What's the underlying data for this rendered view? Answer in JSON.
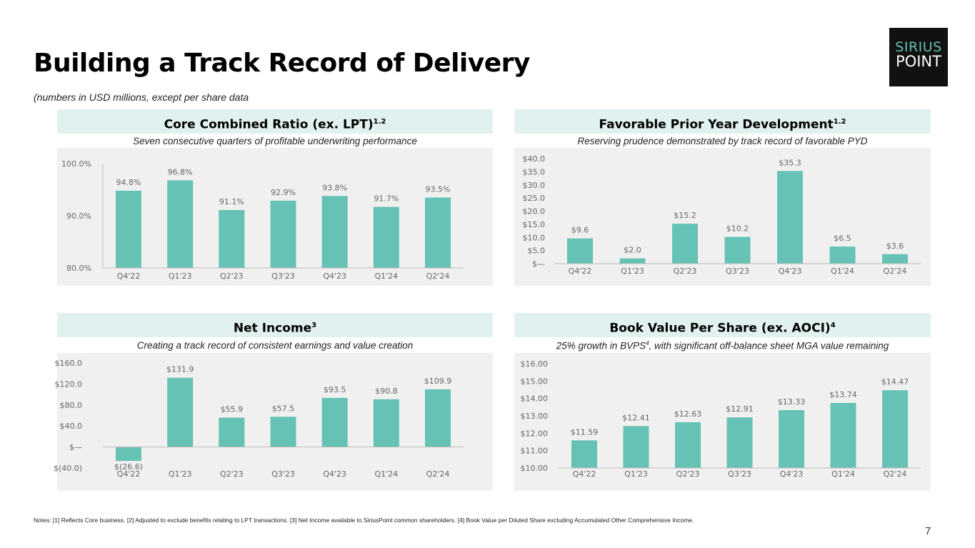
{
  "title": "Building a Track Record of Delivery",
  "subtitle": "(numbers in USD millions, except per share data",
  "logo": {
    "line1": "SIRIUS",
    "line2": "POINT"
  },
  "notes": "Notes: [1] Reflects Core business. [2] Adjusted to exclude benefits relating to LPT transactions. [3] Net Income available to SiriusPoint common shareholders. [4] Book Value per Diluted Share excluding Accumulated Other Comprehensive Income.",
  "page_number": "7",
  "colors": {
    "bar": "#66c2b5",
    "header_bg": "#e1f1ef",
    "chart_bg": "#f0f0f0"
  },
  "chart_data": [
    {
      "type": "bar",
      "title": "Core Combined Ratio (ex. LPT)",
      "title_sup": "1,2",
      "subtitle": "Seven consecutive quarters of profitable underwriting performance",
      "subtitle_sup": "",
      "subtitle_rest": "",
      "categories": [
        "Q4'22",
        "Q1'23",
        "Q2'23",
        "Q3'23",
        "Q4'23",
        "Q1'24",
        "Q2'24"
      ],
      "values": [
        94.8,
        96.8,
        91.1,
        92.9,
        93.8,
        91.7,
        93.5
      ],
      "labels": [
        "94.8%",
        "96.8%",
        "91.1%",
        "92.9%",
        "93.8%",
        "91.7%",
        "93.5%"
      ],
      "ylim": [
        80,
        100
      ],
      "yticks": [
        80,
        90,
        100
      ],
      "ytick_labels": [
        "80.0%",
        "90.0%",
        "100.0%"
      ]
    },
    {
      "type": "bar",
      "title": "Favorable Prior Year Development",
      "title_sup": "1,2",
      "subtitle": "Reserving prudence demonstrated by track record of favorable PYD",
      "subtitle_sup": "",
      "subtitle_rest": "",
      "categories": [
        "Q4'22",
        "Q1'23",
        "Q2'23",
        "Q3'23",
        "Q4'23",
        "Q1'24",
        "Q2'24"
      ],
      "values": [
        9.6,
        2.0,
        15.2,
        10.2,
        35.3,
        6.5,
        3.6
      ],
      "labels": [
        "$9.6",
        "$2.0",
        "$15.2",
        "$10.2",
        "$35.3",
        "$6.5",
        "$3.6"
      ],
      "ylim": [
        0,
        40
      ],
      "yticks": [
        0,
        5,
        10,
        15,
        20,
        25,
        30,
        35,
        40
      ],
      "ytick_labels": [
        "$—",
        "$5.0",
        "$10.0",
        "$15.0",
        "$20.0",
        "$25.0",
        "$30.0",
        "$35.0",
        "$40.0"
      ]
    },
    {
      "type": "bar",
      "title": "Net Income",
      "title_sup": "3",
      "subtitle": "Creating a track record of consistent earnings and value creation",
      "subtitle_sup": "",
      "subtitle_rest": "",
      "categories": [
        "Q4'22",
        "Q1'23",
        "Q2'23",
        "Q3'23",
        "Q4'23",
        "Q1'24",
        "Q2'24"
      ],
      "values": [
        -26.6,
        131.9,
        55.9,
        57.5,
        93.5,
        90.8,
        109.9
      ],
      "labels": [
        "$(26.6)",
        "$131.9",
        "$55.9",
        "$57.5",
        "$93.5",
        "$90.8",
        "$109.9"
      ],
      "ylim": [
        -40,
        160
      ],
      "yticks": [
        -40,
        0,
        40,
        80,
        120,
        160
      ],
      "ytick_labels": [
        "$(40.0)",
        "$—",
        "$40.0",
        "$80.0",
        "$120.0",
        "$160.0"
      ]
    },
    {
      "type": "bar",
      "title": "Book Value Per Share (ex. AOCI)",
      "title_sup": "4",
      "subtitle": "25% growth in BVPS",
      "subtitle_sup": "4",
      "subtitle_rest": ", with significant off-balance sheet MGA value remaining",
      "categories": [
        "Q4'22",
        "Q1'23",
        "Q2'23",
        "Q3'23",
        "Q4'23",
        "Q1'24",
        "Q2'24"
      ],
      "values": [
        11.59,
        12.41,
        12.63,
        12.91,
        13.33,
        13.74,
        14.47
      ],
      "labels": [
        "$11.59",
        "$12.41",
        "$12.63",
        "$12.91",
        "$13.33",
        "$13.74",
        "$14.47"
      ],
      "ylim": [
        10,
        16
      ],
      "yticks": [
        10,
        11,
        12,
        13,
        14,
        15,
        16
      ],
      "ytick_labels": [
        "$10.00",
        "$11.00",
        "$12.00",
        "$13.00",
        "$14.00",
        "$15.00",
        "$16.00"
      ]
    }
  ]
}
